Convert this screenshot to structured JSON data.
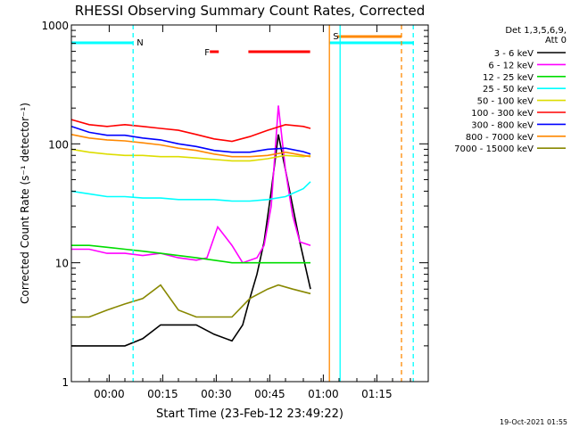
{
  "chart_data": {
    "type": "line",
    "title": "RHESSI Observing Summary Count Rates, Corrected",
    "xlabel": "Start Time (23-Feb-12 23:49:22)",
    "ylabel": "Corrected Count Rate (s⁻¹ detector⁻¹)",
    "y_scale": "log",
    "ylim": [
      1,
      1000
    ],
    "xlim": [
      0,
      100
    ],
    "x_unit": "minutes after start time",
    "x_ticks": [
      {
        "x": 10.6,
        "label": "00:00"
      },
      {
        "x": 25.6,
        "label": "00:15"
      },
      {
        "x": 40.6,
        "label": "00:30"
      },
      {
        "x": 55.6,
        "label": "00:45"
      },
      {
        "x": 70.6,
        "label": "01:00"
      },
      {
        "x": 85.6,
        "label": "01:15"
      }
    ],
    "y_ticks": [
      {
        "value": 1,
        "label": "1"
      },
      {
        "value": 10,
        "label": "10"
      },
      {
        "value": 100,
        "label": "100"
      },
      {
        "value": 1000,
        "label": "1000"
      }
    ],
    "legend": {
      "position": "right",
      "header_lines": [
        "Det 1,3,5,6,9,",
        "Att 0"
      ],
      "entries": [
        {
          "label": "3 - 6 keV",
          "color": "#000000"
        },
        {
          "label": "6 - 12 keV",
          "color": "#ff00ff"
        },
        {
          "label": "12 - 25 keV",
          "color": "#00dd00"
        },
        {
          "label": "25 - 50 keV",
          "color": "#00ffff"
        },
        {
          "label": "50 - 100 keV",
          "color": "#dddd00"
        },
        {
          "label": "100 - 300 keV",
          "color": "#ff0000"
        },
        {
          "label": "300 - 800 keV",
          "color": "#0000ff"
        },
        {
          "label": "800 - 7000 keV",
          "color": "#ff8800"
        },
        {
          "label": "7000 - 15000 keV",
          "color": "#888800"
        }
      ]
    },
    "series": [
      {
        "name": "3 - 6 keV",
        "color": "#000000",
        "x": [
          0,
          5,
          10,
          15,
          20,
          25,
          30,
          35,
          40,
          45,
          48,
          50,
          52,
          54,
          56,
          58,
          60,
          62,
          64,
          67
        ],
        "y": [
          2,
          2,
          2,
          2,
          2.3,
          3,
          3,
          3,
          2.5,
          2.2,
          3,
          5,
          8,
          15,
          40,
          120,
          60,
          30,
          15,
          6
        ]
      },
      {
        "name": "6 - 12 keV",
        "color": "#ff00ff",
        "x": [
          0,
          5,
          10,
          15,
          20,
          25,
          30,
          35,
          38,
          41,
          45,
          48,
          52,
          54,
          56,
          58,
          60,
          62,
          64,
          67
        ],
        "y": [
          13,
          13,
          12,
          12,
          11.5,
          12,
          11,
          10.5,
          11,
          20,
          14,
          10,
          11,
          14,
          30,
          210,
          60,
          25,
          15,
          14
        ]
      },
      {
        "name": "12 - 25 keV",
        "color": "#00dd00",
        "x": [
          0,
          5,
          10,
          15,
          20,
          25,
          30,
          35,
          40,
          45,
          50,
          55,
          60,
          65,
          67
        ],
        "y": [
          14,
          14,
          13.5,
          13,
          12.5,
          12,
          11.5,
          11,
          10.5,
          10,
          10,
          10,
          10,
          10,
          10
        ]
      },
      {
        "name": "25 - 50 keV",
        "color": "#00ffff",
        "x": [
          0,
          5,
          10,
          15,
          20,
          25,
          30,
          35,
          40,
          45,
          50,
          55,
          60,
          65,
          67
        ],
        "y": [
          40,
          38,
          36,
          36,
          35,
          35,
          34,
          34,
          34,
          33,
          33,
          34,
          36,
          42,
          48
        ]
      },
      {
        "name": "50 - 100 keV",
        "color": "#dddd00",
        "x": [
          0,
          5,
          10,
          15,
          20,
          25,
          30,
          35,
          40,
          45,
          50,
          55,
          58,
          60,
          65,
          67
        ],
        "y": [
          90,
          85,
          82,
          80,
          80,
          78,
          78,
          76,
          74,
          72,
          72,
          75,
          78,
          80,
          78,
          80
        ]
      },
      {
        "name": "100 - 300 keV",
        "color": "#ff0000",
        "x": [
          0,
          5,
          10,
          15,
          20,
          25,
          30,
          35,
          40,
          45,
          50,
          55,
          60,
          65,
          67
        ],
        "y": [
          160,
          145,
          140,
          145,
          140,
          135,
          130,
          120,
          110,
          105,
          115,
          130,
          145,
          140,
          135
        ]
      },
      {
        "name": "300 - 800 keV",
        "color": "#0000ff",
        "x": [
          0,
          5,
          10,
          15,
          20,
          25,
          30,
          35,
          40,
          45,
          50,
          55,
          60,
          65,
          67
        ],
        "y": [
          140,
          125,
          118,
          118,
          112,
          108,
          100,
          95,
          88,
          85,
          85,
          90,
          92,
          86,
          82
        ]
      },
      {
        "name": "800 - 7000 keV",
        "color": "#ff8800",
        "x": [
          0,
          5,
          10,
          15,
          20,
          25,
          30,
          35,
          40,
          45,
          50,
          55,
          60,
          65,
          67
        ],
        "y": [
          120,
          112,
          108,
          106,
          102,
          98,
          92,
          88,
          82,
          78,
          78,
          80,
          85,
          80,
          78
        ]
      },
      {
        "name": "7000 - 15000 keV",
        "color": "#888800",
        "x": [
          0,
          5,
          10,
          15,
          20,
          25,
          30,
          35,
          40,
          45,
          50,
          55,
          58,
          62,
          67
        ],
        "y": [
          3.5,
          3.5,
          4,
          4.5,
          5,
          6.5,
          4,
          3.5,
          3.5,
          3.5,
          5,
          6,
          6.5,
          6,
          5.5
        ]
      }
    ],
    "annotations": [
      {
        "label": "N",
        "x": 17.3,
        "color": "#00ffff"
      },
      {
        "label": "F",
        "x": 36.3,
        "color": "#ff0000"
      },
      {
        "label": "S",
        "x": 72.3,
        "color": "#ff8800"
      }
    ],
    "flag_bars": [
      {
        "color": "#00ffff",
        "x_start": 0,
        "x_end": 17.3
      },
      {
        "color": "#00ffff",
        "x_start": 72.3,
        "x_end": 96
      },
      {
        "color": "#ff0000",
        "x_start": 38.8,
        "x_end": 41.3
      },
      {
        "color": "#ff0000",
        "x_start": 49.6,
        "x_end": 66.9
      },
      {
        "color": "#ff8800",
        "x_start": 74.5,
        "x_end": 92.5
      }
    ],
    "vertical_markers": [
      {
        "x": 17.3,
        "color": "#00ffff",
        "style": "dashed"
      },
      {
        "x": 72.3,
        "color": "#ff8800",
        "style": "solid"
      },
      {
        "x": 75.3,
        "color": "#00ffff",
        "style": "solid"
      },
      {
        "x": 92.5,
        "color": "#ff8800",
        "style": "dashed"
      },
      {
        "x": 95.8,
        "color": "#00ffff",
        "style": "dashed"
      }
    ],
    "grid": false,
    "footer": "19-Oct-2021 01:55"
  }
}
